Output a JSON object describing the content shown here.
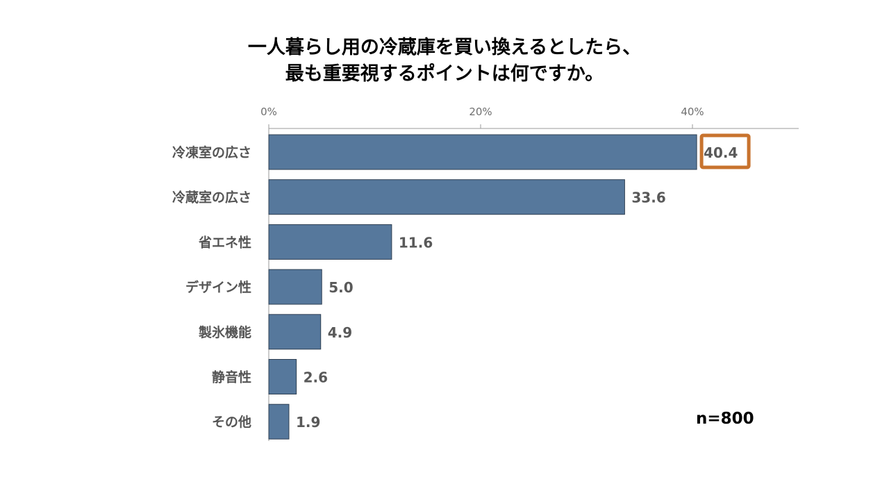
{
  "chart_data": {
    "type": "bar",
    "orientation": "horizontal",
    "title_lines": [
      "一人暮らし用の冷蔵庫を買い換えるとしたら、",
      "最も重要視するポイントは何ですか。"
    ],
    "categories": [
      "冷凍室の広さ",
      "冷蔵室の広さ",
      "省エネ性",
      "デザイン性",
      "製氷機能",
      "静音性",
      "その他"
    ],
    "values": [
      40.4,
      33.6,
      11.6,
      5.0,
      4.9,
      2.6,
      1.9
    ],
    "value_labels": [
      "40.4",
      "33.6",
      "11.6",
      "5.0",
      "4.9",
      "2.6",
      "1.9"
    ],
    "x_ticks": [
      "0%",
      "20%",
      "40%"
    ],
    "xlim": [
      0,
      50
    ],
    "axis_position": "top",
    "grid": false,
    "highlight_index": 0,
    "bar_color": "#56789c",
    "highlight_color": "#c8732e",
    "note": "n=800"
  }
}
